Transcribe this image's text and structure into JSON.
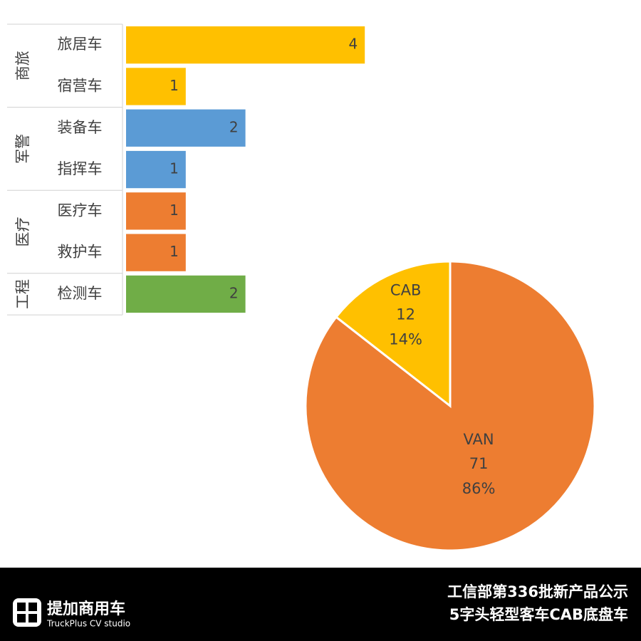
{
  "chart_data": [
    {
      "type": "bar",
      "orientation": "horizontal",
      "groups": [
        {
          "name": "商旅",
          "categories": [
            "旅居车",
            "宿营车"
          ],
          "values": [
            4,
            1
          ],
          "color": "#ffc000"
        },
        {
          "name": "军警",
          "categories": [
            "装备车",
            "指挥车"
          ],
          "values": [
            2,
            1
          ],
          "color": "#5b9bd5"
        },
        {
          "name": "医疗",
          "categories": [
            "医疗车",
            "救护车"
          ],
          "values": [
            1,
            1
          ],
          "color": "#ed7d31"
        },
        {
          "name": "工程",
          "categories": [
            "检测车"
          ],
          "values": [
            2
          ],
          "color": "#70ad47"
        }
      ]
    },
    {
      "type": "pie",
      "categories": [
        "CAB",
        "VAN"
      ],
      "values": [
        12,
        71
      ],
      "percent_labels": [
        "14%",
        "86%"
      ],
      "colors": [
        "#ffc000",
        "#ed7d31"
      ]
    }
  ],
  "footer": {
    "brand": "提加商用车",
    "brand_en": "TruckPlus CV studio",
    "title_lines": [
      "工信部第336批新产品公示",
      "5字头轻型客车CAB底盘车"
    ]
  }
}
